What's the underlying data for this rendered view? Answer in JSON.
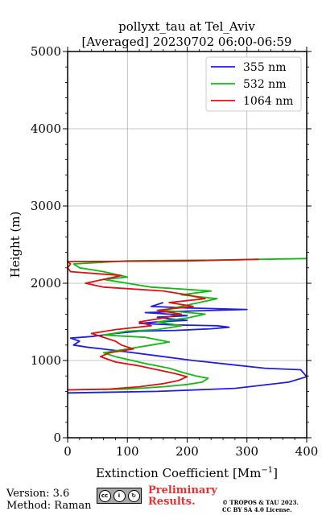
{
  "chart_data": {
    "type": "line",
    "title": "pollyxt_tau at Tel_Aviv",
    "subtitle": "[Averaged] 20230702 06:00-06:59",
    "xlabel": "Extinction Coefficient [Mm",
    "xlabel_sup": "−1",
    "xlabel_suffix": "]",
    "ylabel": "Height (m)",
    "xlim": [
      0,
      400
    ],
    "ylim": [
      0,
      5000
    ],
    "x_ticks": [
      "0",
      "100",
      "200",
      "300",
      "400"
    ],
    "y_ticks": [
      "0",
      "1000",
      "2000",
      "3000",
      "4000",
      "5000"
    ],
    "grid": true,
    "legend_position": "top-right",
    "series": [
      {
        "name": "355 nm",
        "color": "#1f1fdd",
        "points": [
          [
            0,
            580
          ],
          [
            150,
            600
          ],
          [
            280,
            640
          ],
          [
            370,
            720
          ],
          [
            400,
            790
          ],
          [
            390,
            880
          ],
          [
            330,
            900
          ],
          [
            270,
            950
          ],
          [
            210,
            1000
          ],
          [
            150,
            1060
          ],
          [
            100,
            1110
          ],
          [
            70,
            1140
          ],
          [
            35,
            1170
          ],
          [
            10,
            1200
          ],
          [
            20,
            1250
          ],
          [
            5,
            1290
          ],
          [
            40,
            1310
          ],
          [
            60,
            1330
          ],
          [
            80,
            1350
          ],
          [
            120,
            1380
          ],
          [
            180,
            1390
          ],
          [
            240,
            1410
          ],
          [
            270,
            1430
          ],
          [
            250,
            1450
          ],
          [
            180,
            1460
          ],
          [
            120,
            1480
          ],
          [
            150,
            1500
          ],
          [
            200,
            1520
          ],
          [
            170,
            1540
          ],
          [
            150,
            1560
          ],
          [
            200,
            1580
          ],
          [
            170,
            1600
          ],
          [
            130,
            1620
          ],
          [
            200,
            1640
          ],
          [
            300,
            1660
          ],
          [
            200,
            1680
          ],
          [
            140,
            1700
          ],
          [
            160,
            1750
          ]
        ]
      },
      {
        "name": "532 nm",
        "color": "#11bb11",
        "points": [
          [
            0,
            620
          ],
          [
            100,
            630
          ],
          [
            160,
            660
          ],
          [
            200,
            690
          ],
          [
            225,
            720
          ],
          [
            235,
            770
          ],
          [
            215,
            800
          ],
          [
            195,
            840
          ],
          [
            170,
            900
          ],
          [
            130,
            960
          ],
          [
            80,
            1050
          ],
          [
            60,
            1100
          ],
          [
            100,
            1150
          ],
          [
            140,
            1200
          ],
          [
            170,
            1240
          ],
          [
            130,
            1300
          ],
          [
            60,
            1330
          ],
          [
            100,
            1380
          ],
          [
            150,
            1400
          ],
          [
            190,
            1450
          ],
          [
            150,
            1500
          ],
          [
            200,
            1550
          ],
          [
            230,
            1600
          ],
          [
            160,
            1650
          ],
          [
            190,
            1700
          ],
          [
            220,
            1750
          ],
          [
            250,
            1800
          ],
          [
            190,
            1850
          ],
          [
            240,
            1900
          ],
          [
            140,
            1950
          ],
          [
            100,
            2000
          ],
          [
            60,
            2050
          ],
          [
            100,
            2080
          ],
          [
            60,
            2150
          ],
          [
            20,
            2200
          ],
          [
            10,
            2250
          ],
          [
            100,
            2290
          ],
          [
            250,
            2300
          ],
          [
            400,
            2320
          ]
        ]
      },
      {
        "name": "1064 nm",
        "color": "#dd1111",
        "points": [
          [
            0,
            620
          ],
          [
            70,
            630
          ],
          [
            120,
            660
          ],
          [
            160,
            700
          ],
          [
            185,
            740
          ],
          [
            200,
            790
          ],
          [
            180,
            830
          ],
          [
            150,
            880
          ],
          [
            120,
            930
          ],
          [
            80,
            980
          ],
          [
            55,
            1050
          ],
          [
            70,
            1100
          ],
          [
            110,
            1150
          ],
          [
            90,
            1200
          ],
          [
            80,
            1250
          ],
          [
            60,
            1300
          ],
          [
            40,
            1350
          ],
          [
            80,
            1400
          ],
          [
            140,
            1450
          ],
          [
            120,
            1500
          ],
          [
            160,
            1550
          ],
          [
            190,
            1600
          ],
          [
            150,
            1650
          ],
          [
            210,
            1700
          ],
          [
            170,
            1750
          ],
          [
            230,
            1800
          ],
          [
            200,
            1850
          ],
          [
            160,
            1900
          ],
          [
            60,
            1950
          ],
          [
            30,
            2000
          ],
          [
            60,
            2050
          ],
          [
            90,
            2100
          ],
          [
            5,
            2150
          ],
          [
            0,
            2200
          ],
          [
            5,
            2250
          ],
          [
            0,
            2280
          ],
          [
            200,
            2290
          ],
          [
            320,
            2310
          ]
        ]
      }
    ]
  },
  "footer": {
    "version": "Version: 3.6",
    "method": "Method: Raman",
    "preliminary_line1": "Preliminary",
    "preliminary_line2": "Results.",
    "copyright_line1": "© TROPOS & TAU 2023.",
    "copyright_line2": "CC BY SA 4.0 License.",
    "badge_colors": {
      "background": "#a8a8a8",
      "prelim_text": "#e83030"
    }
  }
}
